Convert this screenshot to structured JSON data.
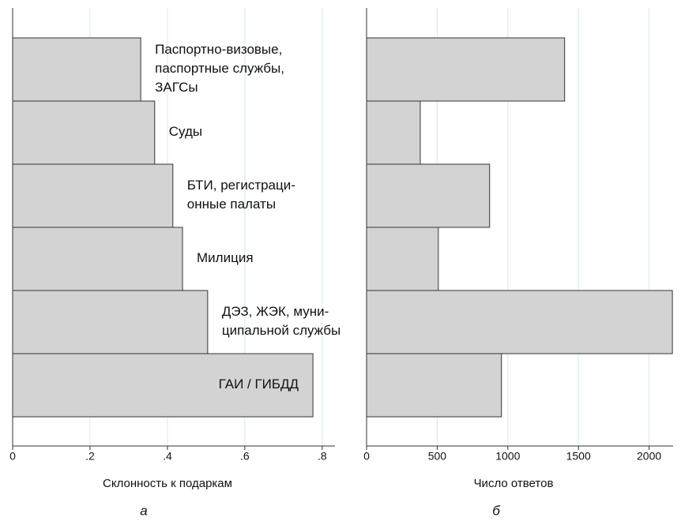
{
  "chart_data": [
    {
      "type": "bar",
      "orientation": "horizontal",
      "panel_label": "а",
      "xlabel": "Склонность к подаркам",
      "categories": [
        [
          "Паспортно-визовые,",
          "паспортные службы,",
          "ЗАГСы"
        ],
        [
          "Суды"
        ],
        [
          "БТИ, регистраци-",
          "онные палаты"
        ],
        [
          "Милиция"
        ],
        [
          "ДЭЗ, ЖЭК, муни-",
          "ципальной службы"
        ],
        [
          "ГАИ / ГИБДД"
        ]
      ],
      "values": [
        0.331,
        0.367,
        0.414,
        0.439,
        0.504,
        0.776
      ],
      "color": "#d3d3d3",
      "xlim": [
        0,
        0.833
      ],
      "xticks": [
        0,
        {
          "value": 0.2,
          "label": ".2"
        },
        {
          "value": 0.4,
          "label": ".4"
        },
        {
          "value": 0.6,
          "label": ".6"
        },
        {
          "value": 0.8,
          "label": ".8"
        }
      ],
      "grid": true
    },
    {
      "type": "bar",
      "orientation": "horizontal",
      "panel_label": "б",
      "xlabel": "Число ответов",
      "values": [
        1402,
        380,
        871,
        508,
        2165,
        955
      ],
      "color": "#d3d3d3",
      "xlim": [
        0,
        2170
      ],
      "xticks": [
        0,
        500,
        1000,
        1500,
        2000
      ],
      "grid": true
    }
  ]
}
